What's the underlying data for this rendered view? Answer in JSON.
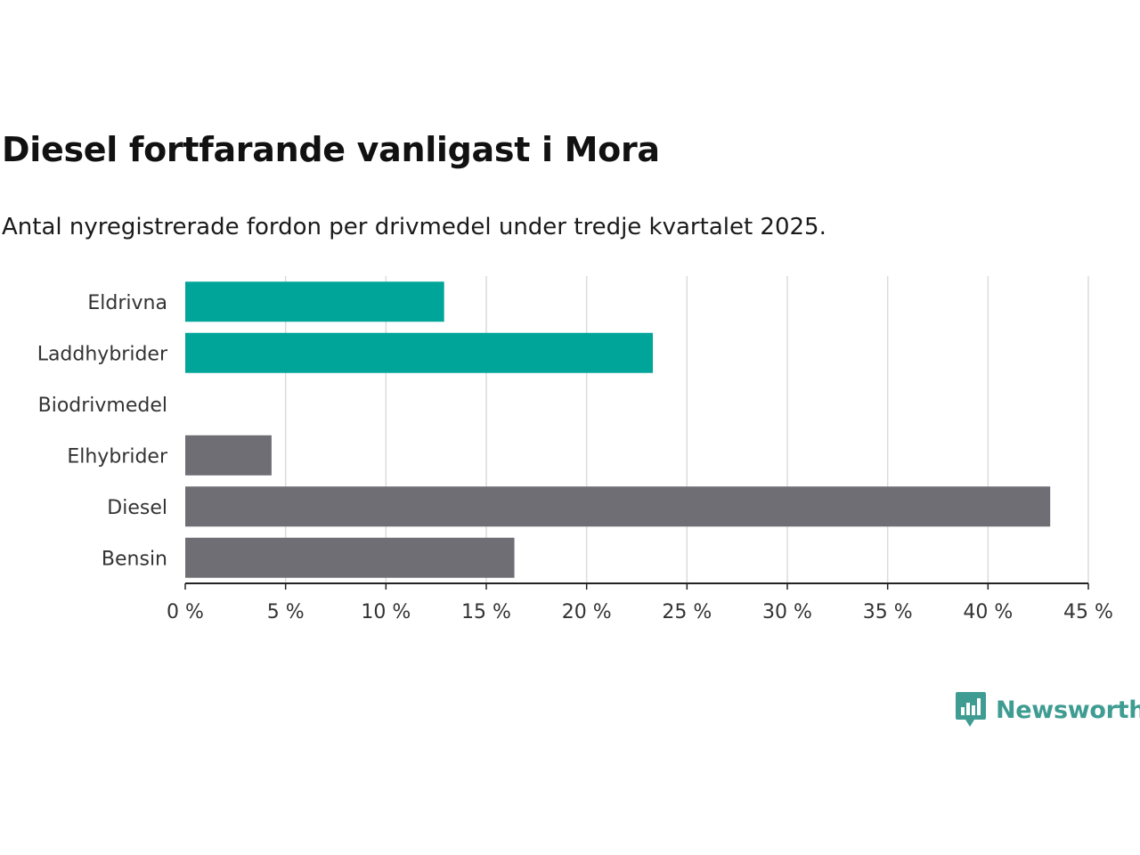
{
  "chart_data": {
    "type": "bar",
    "orientation": "horizontal",
    "title": "Diesel fortfarande vanligast i Mora",
    "subtitle": "Antal nyregistrerade fordon per drivmedel under tredje kvartalet 2025.",
    "categories": [
      "Eldrivna",
      "Laddhybrider",
      "Biodrivmedel",
      "Elhybrider",
      "Diesel",
      "Bensin"
    ],
    "values": [
      12.9,
      23.3,
      0,
      4.3,
      43.1,
      16.4
    ],
    "colors": [
      "#00a59a",
      "#00a59a",
      "#00a59a",
      "#6f6e74",
      "#6f6e74",
      "#6f6e74"
    ],
    "xlim": [
      0,
      45
    ],
    "xticks": [
      0,
      5,
      10,
      15,
      20,
      25,
      30,
      35,
      40,
      45
    ],
    "tick_labels": [
      "0 %",
      "5 %",
      "10 %",
      "15 %",
      "20 %",
      "25 %",
      "30 %",
      "35 %",
      "40 %",
      "45 %"
    ],
    "grid": true,
    "xlabel": "",
    "ylabel": ""
  },
  "brand": {
    "name": "Newsworthy",
    "color": "#3f9c92",
    "icon": "newsworthy-logo-icon"
  }
}
